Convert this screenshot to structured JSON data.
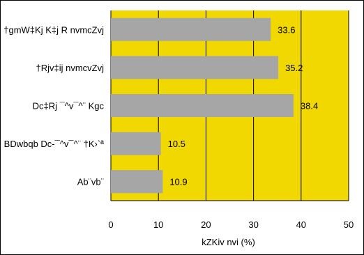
{
  "chart_data": {
    "type": "bar",
    "orientation": "horizontal",
    "categories": [
      "†gmW‡Kj K‡j R nvmcZvj",
      "†Rjv‡ij nvmcvZvj",
      "Dc‡Rj ¯^v¯^¨ Kgc­",
      "BDwbqb Dc-¯^v¯^¨ †K›`ª",
      "Ab¨vb¨"
    ],
    "values": [
      33.6,
      35.2,
      38.4,
      10.5,
      10.9
    ],
    "value_labels": [
      "33.6",
      "35.2",
      "38.4",
      "10.5",
      "10.9"
    ],
    "xlim": [
      0,
      50
    ],
    "xticks": [
      "0",
      "10",
      "20",
      "30",
      "40",
      "50"
    ],
    "xlabel": "kZKiv nvi (%)",
    "ylabel": "",
    "title": "",
    "grid": "vertical",
    "legend": "none",
    "colors": {
      "plot_background": "#f0d800",
      "bar": "#a6a6a6",
      "gridline": "#000000",
      "frame": "#000000"
    }
  }
}
